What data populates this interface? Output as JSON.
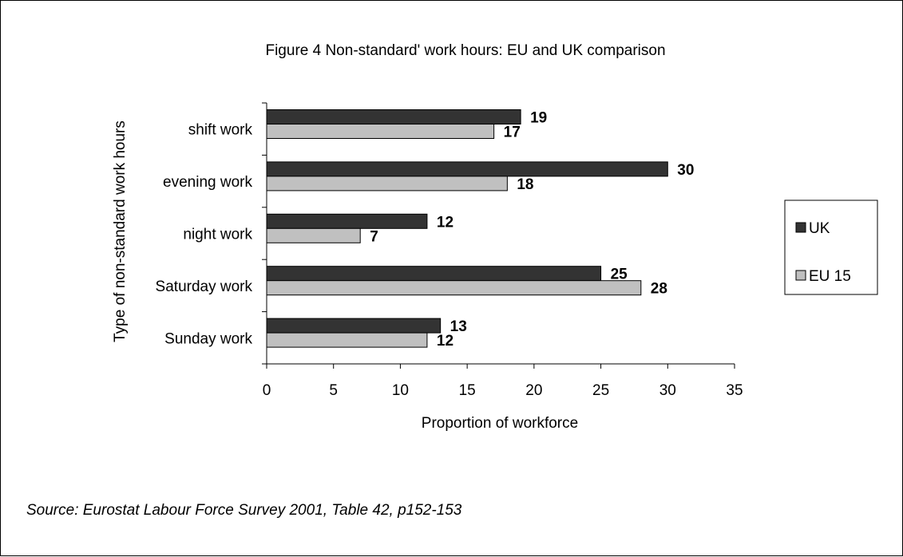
{
  "chart_data": {
    "type": "bar",
    "orientation": "horizontal",
    "title": "Figure 4 Non-standard' work hours: EU and UK comparison",
    "xlabel": "Proportion of workforce",
    "ylabel": "Type of non-standard work hours",
    "categories": [
      "shift work",
      "evening work",
      "night work",
      "Saturday work",
      "Sunday work"
    ],
    "series": [
      {
        "name": "UK",
        "values": [
          19,
          30,
          12,
          25,
          13
        ],
        "color": "#333333"
      },
      {
        "name": "EU 15",
        "values": [
          17,
          18,
          7,
          28,
          12
        ],
        "color": "#c0c0c0"
      }
    ],
    "xlim": [
      0,
      35
    ],
    "xticks": [
      0,
      5,
      10,
      15,
      20,
      25,
      30,
      35
    ],
    "grid": false,
    "legend_position": "right"
  },
  "source_note": "Source: Eurostat Labour Force Survey 2001, Table 42, p152-153"
}
